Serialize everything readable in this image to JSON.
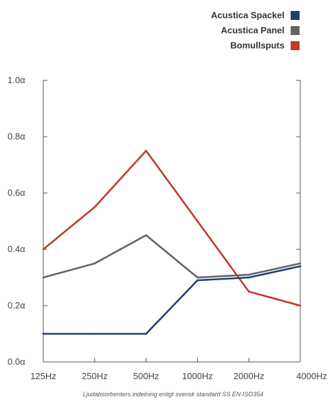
{
  "chart_data": {
    "type": "line",
    "categories": [
      "125Hz",
      "250Hz",
      "500Hz",
      "1000Hz",
      "2000Hz",
      "4000Hz"
    ],
    "y_tick_labels": [
      "0.0α",
      "0.2α",
      "0.4α",
      "0.6α",
      "0.8α",
      "1.0α"
    ],
    "y_ticks": [
      0.0,
      0.2,
      0.4,
      0.6,
      0.8,
      1.0
    ],
    "ylim": [
      0.0,
      1.0
    ],
    "grid": false,
    "legend_position": "top-right",
    "caption": "Ljudabsorbenters indelning enligt svensk standard SS EN ISO354",
    "series": [
      {
        "name": "Acustica Spackel",
        "color": "#1f3f73",
        "values": [
          0.1,
          0.1,
          0.1,
          0.29,
          0.3,
          0.34
        ]
      },
      {
        "name": "Acustica Panel",
        "color": "#636466",
        "values": [
          0.3,
          0.35,
          0.45,
          0.3,
          0.31,
          0.35
        ]
      },
      {
        "name": "Bomullsputs",
        "color": "#c0392b",
        "values": [
          0.4,
          0.55,
          0.75,
          0.5,
          0.25,
          0.2
        ]
      }
    ]
  }
}
